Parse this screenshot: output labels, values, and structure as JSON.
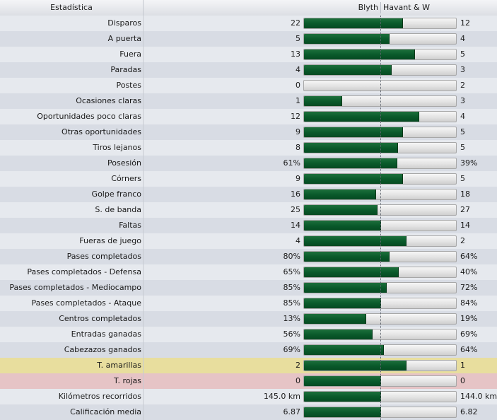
{
  "header": {
    "stat_label": "Estadística",
    "home_team": "Blyth",
    "away_team": "Havant & W"
  },
  "colors": {
    "bar_fill": "#0a5a2b",
    "bar_empty": "#e3e3e3",
    "row_yellow": "#e8de9e",
    "row_red": "#e6c4c6"
  },
  "rows": [
    {
      "label": "Disparos",
      "home": "22",
      "away": "12",
      "home_share": 0.647
    },
    {
      "label": "A puerta",
      "home": "5",
      "away": "4",
      "home_share": 0.556
    },
    {
      "label": "Fuera",
      "home": "13",
      "away": "5",
      "home_share": 0.722
    },
    {
      "label": "Paradas",
      "home": "4",
      "away": "3",
      "home_share": 0.571
    },
    {
      "label": "Postes",
      "home": "0",
      "away": "2",
      "home_share": 0.0
    },
    {
      "label": "Ocasiones claras",
      "home": "1",
      "away": "3",
      "home_share": 0.25
    },
    {
      "label": "Oportunidades poco claras",
      "home": "12",
      "away": "4",
      "home_share": 0.75
    },
    {
      "label": "Otras oportunidades",
      "home": "9",
      "away": "5",
      "home_share": 0.643
    },
    {
      "label": "Tiros lejanos",
      "home": "8",
      "away": "5",
      "home_share": 0.615
    },
    {
      "label": "Posesión",
      "home": "61%",
      "away": "39%",
      "home_share": 0.61
    },
    {
      "label": "Córners",
      "home": "9",
      "away": "5",
      "home_share": 0.643
    },
    {
      "label": "Golpe franco",
      "home": "16",
      "away": "18",
      "home_share": 0.471
    },
    {
      "label": "S. de banda",
      "home": "25",
      "away": "27",
      "home_share": 0.481
    },
    {
      "label": "Faltas",
      "home": "14",
      "away": "14",
      "home_share": 0.5
    },
    {
      "label": "Fueras de juego",
      "home": "4",
      "away": "2",
      "home_share": 0.667
    },
    {
      "label": "Pases completados",
      "home": "80%",
      "away": "64%",
      "home_share": 0.556
    },
    {
      "label": "Pases completados - Defensa",
      "home": "65%",
      "away": "40%",
      "home_share": 0.619
    },
    {
      "label": "Pases completados - Mediocampo",
      "home": "85%",
      "away": "72%",
      "home_share": 0.541
    },
    {
      "label": "Pases completados - Ataque",
      "home": "85%",
      "away": "84%",
      "home_share": 0.503
    },
    {
      "label": "Centros completados",
      "home": "13%",
      "away": "19%",
      "home_share": 0.406
    },
    {
      "label": "Entradas ganadas",
      "home": "56%",
      "away": "69%",
      "home_share": 0.448
    },
    {
      "label": "Cabezazos ganados",
      "home": "69%",
      "away": "64%",
      "home_share": 0.519
    },
    {
      "label": "T. amarillas",
      "home": "2",
      "away": "1",
      "home_share": 0.667,
      "highlight": "yellow"
    },
    {
      "label": "T. rojas",
      "home": "0",
      "away": "0",
      "home_share": 0.5,
      "highlight": "red"
    },
    {
      "label": "Kilómetros recorridos",
      "home": "145.0 km",
      "away": "144.0 km",
      "home_share": 0.502
    },
    {
      "label": "Calificación media",
      "home": "6.87",
      "away": "6.82",
      "home_share": 0.502
    }
  ]
}
